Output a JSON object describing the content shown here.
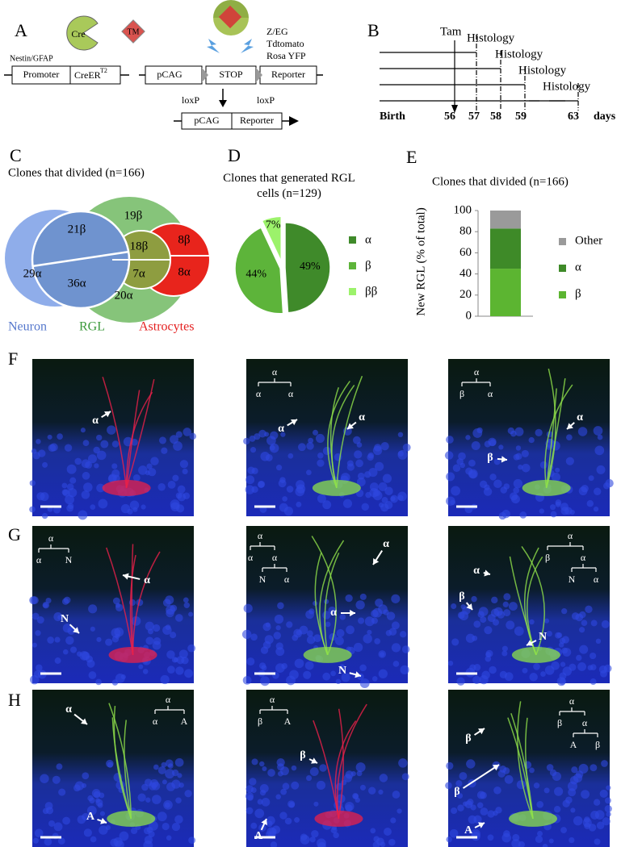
{
  "panel_letters": [
    "A",
    "B",
    "C",
    "D",
    "E",
    "F",
    "G",
    "H"
  ],
  "panel_a": {
    "cre": "Cre",
    "tm": "TM",
    "promoter_label": "Nestin/GFAP",
    "promoter": "Promoter",
    "creer": "CreER",
    "creer_sup": "T2",
    "pcag": "pCAG",
    "stop": "STOP",
    "reporter": "Reporter",
    "reporters": [
      "Z/EG",
      "Tdtomato",
      "Rosa YFP"
    ],
    "loxp": "loxP"
  },
  "panel_b": {
    "tam": "Tam",
    "histology": "Histology",
    "axis": [
      "Birth",
      "56",
      "57",
      "58",
      "59",
      "63",
      "days"
    ]
  },
  "panel_c": {
    "title": "Clones that divided (n=166)",
    "regions": [
      "29α",
      "21β",
      "36α",
      "19β",
      "18β",
      "7α",
      "20α",
      "8β",
      "8α"
    ],
    "sets": [
      "Neuron",
      "RGL",
      "Astrocytes"
    ]
  },
  "chart_data": [
    {
      "type": "pie",
      "title": "Clones that generated RGL cells (n=129)",
      "categories": [
        "α",
        "β",
        "ββ"
      ],
      "values": [
        49,
        44,
        7
      ],
      "value_labels": [
        "49%",
        "44%",
        "7%"
      ],
      "colors": [
        "#3f8a2a",
        "#5db43a",
        "#9cf26b"
      ]
    },
    {
      "type": "bar",
      "stacked": true,
      "title": "Clones that divided (n=166)",
      "ylabel": "New RGL (% of total)",
      "categories": [
        null
      ],
      "ylim": [
        0,
        100
      ],
      "yticks": [
        0,
        20,
        40,
        60,
        80,
        100
      ],
      "series": [
        {
          "name": "β",
          "color": "#5cb531",
          "values": [
            45
          ]
        },
        {
          "name": "α",
          "color": "#3e8a28",
          "values": [
            38
          ]
        },
        {
          "name": "Other",
          "color": "#9a9a9a",
          "values": [
            17
          ]
        }
      ]
    }
  ],
  "images": [
    {
      "tree": [],
      "arrows": [
        "α"
      ]
    },
    {
      "tree": [
        "α",
        "α",
        "α"
      ],
      "arrows": [
        "α",
        "α"
      ]
    },
    {
      "tree": [
        "α",
        "β",
        "α"
      ],
      "arrows": [
        "β",
        "α"
      ]
    },
    {
      "tree": [
        "α",
        "α",
        "N"
      ],
      "arrows": [
        "N",
        "α"
      ]
    },
    {
      "tree": [
        "α",
        "α",
        "α",
        "N",
        "α"
      ],
      "arrows": [
        "α",
        "α",
        "N"
      ]
    },
    {
      "tree": [
        "α",
        "β",
        "α",
        "N",
        "α"
      ],
      "arrows": [
        "α",
        "β",
        "N"
      ]
    },
    {
      "tree": [
        "α",
        "α",
        "A"
      ],
      "arrows": [
        "α",
        "A"
      ]
    },
    {
      "tree": [
        "α",
        "β",
        "A"
      ],
      "arrows": [
        "β",
        "A"
      ]
    },
    {
      "tree": [
        "α",
        "β",
        "α",
        "A",
        "β"
      ],
      "arrows": [
        "β",
        "β",
        "A"
      ]
    }
  ]
}
